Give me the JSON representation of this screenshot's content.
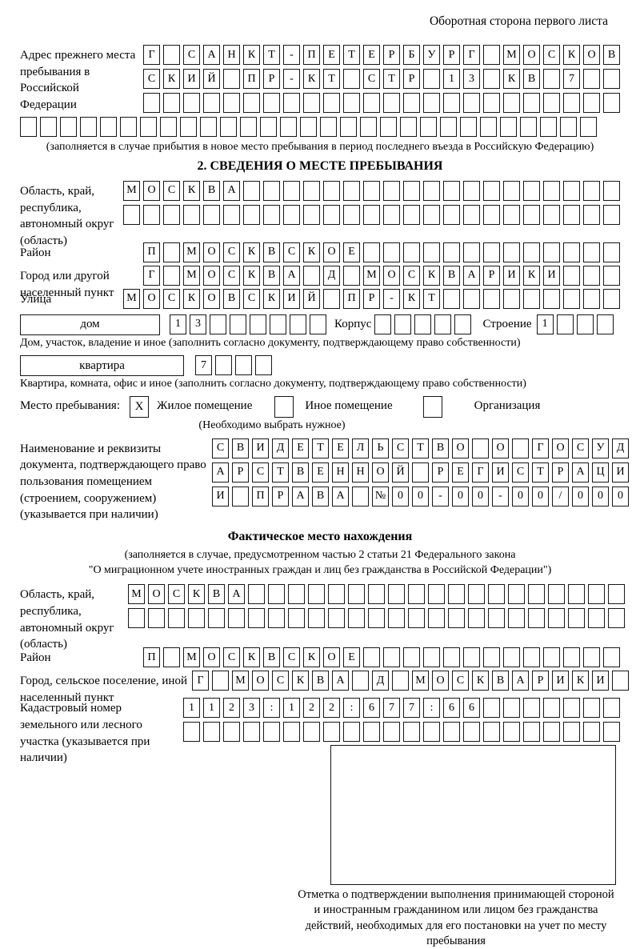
{
  "page": {
    "header": "Оборотная сторона первого листа"
  },
  "prev_address": {
    "label": "Адрес прежнего места пребывания в Российской Федерации",
    "row1": {
      "text": "Г САНКТ-ПЕТЕРБУРГ МОСКОВ",
      "len": 24
    },
    "row2": {
      "text": "СКИЙ ПР-КТ СТР 13 КВ 7",
      "len": 24
    },
    "row3": {
      "text": "",
      "len": 24
    },
    "row4": {
      "text": "",
      "len": 29
    },
    "note": "(заполняется в случае прибытия в новое место пребывания в период последнего въезда в Российскую Федерацию)"
  },
  "section2": {
    "title": "2. СВЕДЕНИЯ О МЕСТЕ ПРЕБЫВАНИЯ",
    "region": {
      "label": "Область, край, республика, автономный округ (область)",
      "row1": {
        "text": "МОСКВА",
        "len": 25
      },
      "row2": {
        "text": "",
        "len": 25
      }
    },
    "district": {
      "label": "Район",
      "row": {
        "text": "П МОСКВСКОЕ",
        "len": 24
      }
    },
    "city": {
      "label": "Город или другой населенный пункт",
      "row": {
        "text": "Г МОСКВА Д МОСКВАРИКИ",
        "len": 24
      }
    },
    "street": {
      "label": "Улица",
      "row": {
        "text": "МОСКОВСКИЙ ПР-КТ",
        "len": 25
      }
    },
    "house": {
      "box": "дом",
      "cells": {
        "text": "13",
        "len": 8
      },
      "korpus_label": "Корпус",
      "korpus": {
        "text": "",
        "len": 5
      },
      "stroenie_label": "Строение",
      "stroenie": {
        "text": "1",
        "len": 4
      },
      "note": "Дом, участок, владение и иное (заполнить согласно документу, подтверждающему право собственности)"
    },
    "apartment": {
      "box": "квартира",
      "cells": {
        "text": "7",
        "len": 4
      },
      "note": "Квартира, комната, офис и иное (заполнить согласно документу, подтверждающему право собственности)"
    },
    "stay": {
      "label": "Место пребывания:",
      "opt1": {
        "label": "Жилое помещение",
        "mark": "X"
      },
      "opt2": {
        "label": "Иное помещение",
        "mark": ""
      },
      "opt3": {
        "label": "Организация",
        "mark": ""
      },
      "note": "(Необходимо выбрать нужное)"
    },
    "document": {
      "label": "Наименование и реквизиты документа, подтверждающего право пользования помещением (строением, сооружением) (указывается при наличии)",
      "row1": {
        "text": "СВИДЕТЕЛЬСТВО О ГОСУД",
        "len": 21
      },
      "row2": {
        "text": "АРСТВЕННОЙ РЕГИСТРАЦИ",
        "len": 21
      },
      "row3": {
        "text": "И ПРАВА №00-00-00/000",
        "len": 21
      }
    }
  },
  "actual_location": {
    "title": "Фактическое место нахождения",
    "note_line1": "(заполняется в случае, предусмотренном частью 2 статьи 21 Федерального закона",
    "note_line2": "\"О миграционном учете иностранных граждан и лиц без гражданства в Российской Федерации\")",
    "region": {
      "label": "Область, край, республика, автономный округ (область)",
      "row1": {
        "text": "МОСКВА",
        "len": 25
      },
      "row2": {
        "text": "",
        "len": 25
      }
    },
    "district": {
      "label": "Район",
      "row": {
        "text": "П МОСКВСКОЕ",
        "len": 24
      }
    },
    "city": {
      "label": "Город, сельское поселение, иной населенный пункт",
      "row": {
        "text": "Г МОСКВА Д МОСКВАРИКИ",
        "len": 22
      }
    },
    "cadastre": {
      "label": "Кадастровый номер земельного или лесного участка (указывается при наличии)",
      "row1": {
        "text": "1123:122:677:66",
        "len": 22
      },
      "row2": {
        "text": "",
        "len": 22
      }
    },
    "stamp_note": "Отметка о подтверждении выполнения принимающей стороной и иностранным гражданином или лицом без гражданства действий, необходимых для его постановки на учет по месту пребывания"
  }
}
